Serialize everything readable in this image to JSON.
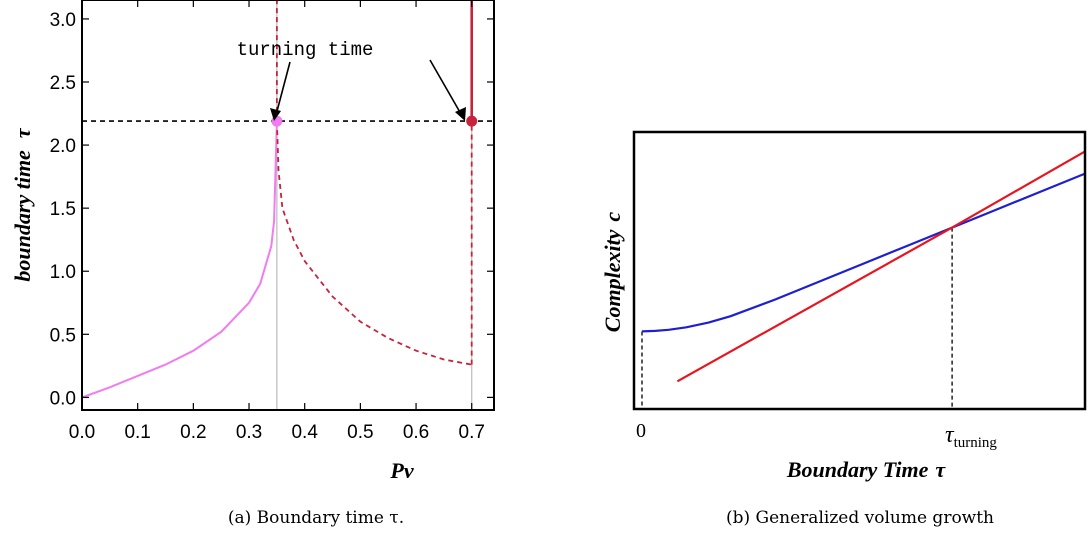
{
  "chart_data": [
    {
      "type": "line",
      "ylabel": "boundary time",
      "ylabel_symbol": "τ",
      "xlabel": "Pv",
      "caption": "(a) Boundary time τ.",
      "xlim": [
        0.0,
        0.74
      ],
      "ylim": [
        -0.1,
        3.15
      ],
      "x_ticks": [
        "0.0",
        "0.1",
        "0.2",
        "0.3",
        "0.4",
        "0.5",
        "0.6",
        "0.7"
      ],
      "y_ticks": [
        "0.0",
        "0.5",
        "1.0",
        "1.5",
        "2.0",
        "2.5",
        "3.0"
      ],
      "annotation": "turning time",
      "turning_tau": 2.19,
      "vertical_lines": [
        0.35,
        0.7
      ],
      "colors": {
        "violet": "#f07cf0",
        "crimson": "#c8233c",
        "guide": "#bbbbbb"
      },
      "series": [
        {
          "style": "solid-violet",
          "x": [
            0.0,
            0.05,
            0.1,
            0.15,
            0.2,
            0.25,
            0.3,
            0.32,
            0.34,
            0.345,
            0.35
          ],
          "y": [
            0.0,
            0.08,
            0.17,
            0.26,
            0.37,
            0.52,
            0.75,
            0.9,
            1.2,
            1.4,
            2.19
          ]
        },
        {
          "style": "dashed-crimson",
          "x": [
            0.35,
            0.353,
            0.36,
            0.38,
            0.4,
            0.45,
            0.5,
            0.55,
            0.6,
            0.65,
            0.7
          ],
          "y": [
            2.19,
            1.8,
            1.5,
            1.25,
            1.08,
            0.8,
            0.6,
            0.47,
            0.37,
            0.3,
            0.26
          ]
        },
        {
          "style": "dashed-crimson-vertical",
          "x": [
            0.35,
            0.35
          ],
          "y": [
            2.19,
            3.15
          ]
        },
        {
          "style": "dashed-crimson-vertical",
          "x": [
            0.7,
            0.7
          ],
          "y": [
            0.26,
            2.19
          ]
        },
        {
          "style": "solid-crimson-vertical",
          "x": [
            0.7,
            0.7
          ],
          "y": [
            2.19,
            3.15
          ]
        }
      ],
      "points": [
        {
          "x": 0.35,
          "y": 2.19,
          "color": "#f07cf0"
        },
        {
          "x": 0.7,
          "y": 2.19,
          "color": "#c8233c"
        }
      ]
    },
    {
      "type": "line",
      "ylabel": "Complexity",
      "ylabel_symbol": "c",
      "xlabel": "Boundary Time",
      "xlabel_symbol": "τ",
      "caption": "(b) Generalized volume growth",
      "xlim": [
        0,
        10
      ],
      "ylim": [
        0,
        10
      ],
      "x_ticks": [
        "0"
      ],
      "x_tick_turning": "τ",
      "x_tick_turning_sub": "turning",
      "turning_x": 7.0,
      "colors": {
        "blue": "#1f1fd2",
        "red": "#e8141e"
      },
      "series": [
        {
          "name": "",
          "color": "#1f1fd2",
          "x": [
            0,
            0.3,
            0.6,
            1,
            1.5,
            2,
            3,
            4,
            5,
            6,
            7,
            8,
            9,
            10
          ],
          "y": [
            2.8,
            2.82,
            2.86,
            2.95,
            3.12,
            3.35,
            3.95,
            4.6,
            5.25,
            5.9,
            6.55,
            7.2,
            7.85,
            8.5
          ]
        },
        {
          "name": "",
          "color": "#e8141e",
          "x": [
            0.8,
            7.0,
            10
          ],
          "y": [
            1.0,
            6.55,
            9.3
          ]
        }
      ]
    }
  ]
}
